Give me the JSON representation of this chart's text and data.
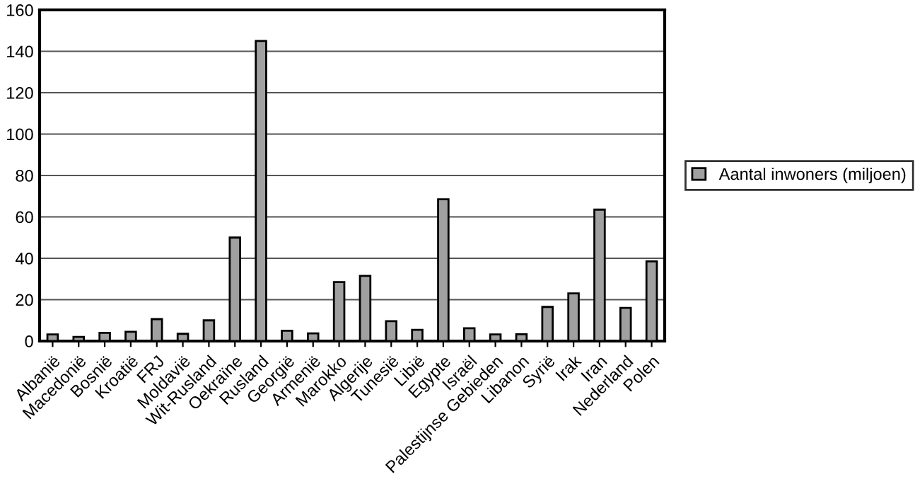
{
  "chart_data": {
    "type": "bar",
    "categories": [
      "Albanië",
      "Macedonië",
      "Bosnië",
      "Kroatië",
      "FRJ",
      "Moldavië",
      "Wit-Rusland",
      "Oekraïne",
      "Rusland",
      "Georgië",
      "Armenië",
      "Marokko",
      "Algerije",
      "Tunesië",
      "Libië",
      "Egypte",
      "Israël",
      "Palestijnse Gebieden",
      "Libanon",
      "Syrië",
      "Irak",
      "Iran",
      "Nederland",
      "Polen"
    ],
    "series": [
      {
        "name": "Aantal inwoners (miljoen)",
        "color": "#a0a0a0",
        "values": [
          3.2,
          2,
          4,
          4.5,
          10.6,
          3.5,
          10,
          50,
          145,
          5,
          3.7,
          28.5,
          31.5,
          9.6,
          5.4,
          68.5,
          6.2,
          3.2,
          3.3,
          16.5,
          23,
          63.5,
          16,
          38.5
        ]
      }
    ],
    "ylim": [
      0,
      160
    ],
    "yticks": [
      0,
      20,
      40,
      60,
      80,
      100,
      120,
      140,
      160
    ],
    "grid": "y",
    "legend": "right"
  }
}
